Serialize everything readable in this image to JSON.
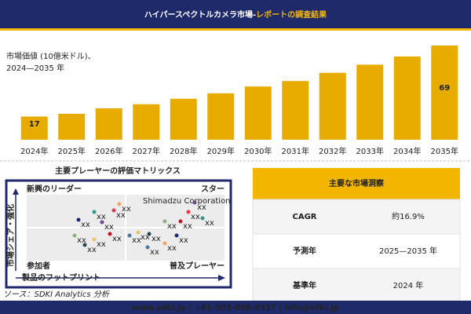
{
  "header": {
    "title_main": "ハイパースペクトルカメラ市場-",
    "title_accent": "レポートの調査結果"
  },
  "chart_data": {
    "type": "bar",
    "subtitle": [
      "市場価値 (10億米ドル)、",
      "2024—2035 年"
    ],
    "categories": [
      "2024年",
      "2025年",
      "2026年",
      "2027年",
      "2028年",
      "2029年",
      "2030年",
      "2031年",
      "2032年",
      "2033年",
      "2034年",
      "2035年"
    ],
    "values": [
      17,
      19,
      23,
      26,
      30,
      34,
      39,
      43,
      49,
      55,
      61,
      69
    ],
    "color": "#e8ac00"
  },
  "matrix": {
    "title": "主要プレーヤーの評価マトリックス",
    "quadrants": [
      "新興のリーダー",
      "スター",
      "参加者",
      "普及プレーヤー"
    ],
    "highlight": "Shimadzu Corporation",
    "y_axis": "市場シェア・強化",
    "x_axis": "製品のフットプリント",
    "points": [
      "xx",
      "xx",
      "xx",
      "xx",
      "xx",
      "xx",
      "xx",
      "xx",
      "xx",
      "xx",
      "xx",
      "xx",
      "xx",
      "xx",
      "xx",
      "xx",
      "xx",
      "xx",
      "xx",
      "xx"
    ]
  },
  "source": "ソース：SDKI Analytics 分析",
  "insights": {
    "title": "主要な市場洞察",
    "rows": [
      [
        "CAGR",
        "約16.9%"
      ],
      [
        "予測年",
        "2025—2035 年"
      ],
      [
        "基準年",
        "2024 年"
      ]
    ]
  },
  "footer": "www.sdki.jp | +81-505-050-9337 | info@sdki.jp"
}
